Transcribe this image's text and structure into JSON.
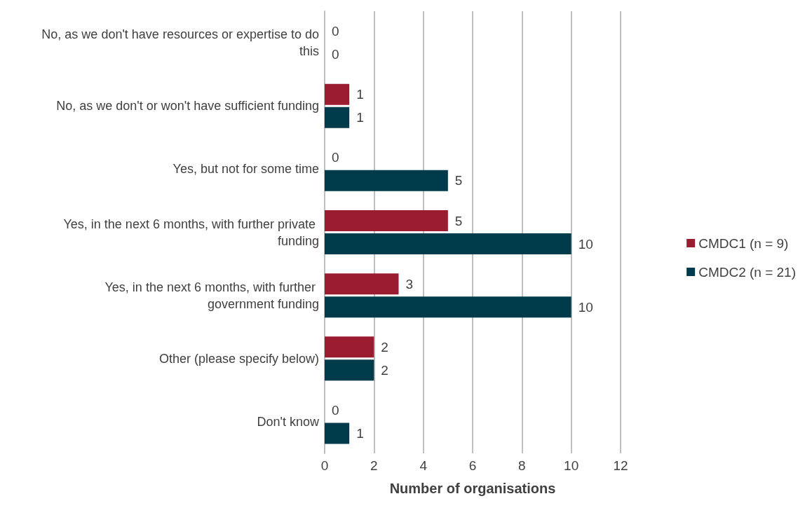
{
  "chart_data": {
    "type": "bar",
    "orientation": "horizontal",
    "xlabel": "Number of organisations",
    "categories": [
      "No, as we don't have resources or expertise to do this",
      "No, as we don't or won't have sufficient funding",
      "Yes, but not for some time",
      "Yes, in the next 6 months, with further private funding",
      "Yes, in the next 6 months, with further government funding",
      "Other (please specify below)",
      "Don't know"
    ],
    "series": [
      {
        "name": "CMDC1 (n = 9)",
        "color": "#9b1b30",
        "values": [
          0,
          1,
          0,
          5,
          3,
          2,
          0
        ]
      },
      {
        "name": "CMDC2 (n = 21)",
        "color": "#003b4c",
        "values": [
          0,
          1,
          5,
          10,
          10,
          2,
          1
        ]
      }
    ],
    "xlim": [
      0,
      12
    ],
    "xticks": [
      0,
      2,
      4,
      6,
      8,
      10,
      12
    ],
    "grid": "x",
    "legend": "right",
    "data_labels": true
  }
}
